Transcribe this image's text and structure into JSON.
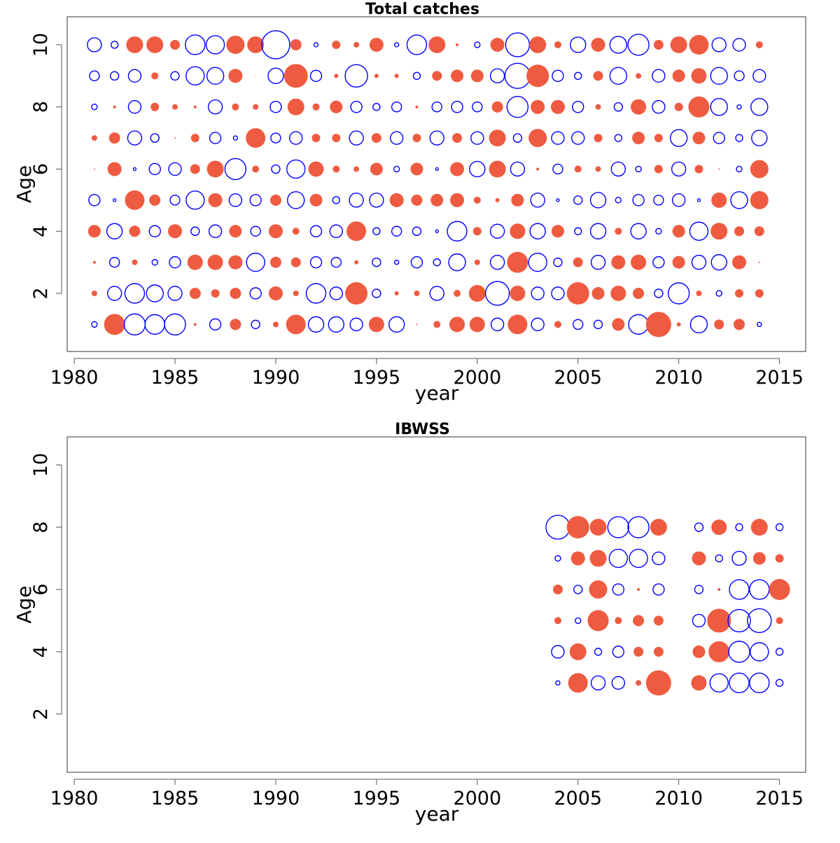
{
  "chart_data": [
    {
      "type": "bubble",
      "title": "Total catches",
      "xlabel": "year",
      "ylabel": "Age",
      "positive_color": "#ef5b40",
      "negative_color": "#0000ff",
      "xlim": [
        1979.65,
        2016.3
      ],
      "ylim": [
        0.13,
        10.9
      ],
      "xticks": [
        1980,
        1985,
        1990,
        1995,
        2000,
        2005,
        2010,
        2015
      ],
      "yticks": [
        2,
        4,
        6,
        8,
        10
      ],
      "x": [
        1981,
        1982,
        1983,
        1984,
        1985,
        1986,
        1987,
        1988,
        1989,
        1990,
        1991,
        1992,
        1993,
        1994,
        1995,
        1996,
        1997,
        1998,
        1999,
        2000,
        2001,
        2002,
        2003,
        2004,
        2005,
        2006,
        2007,
        2008,
        2009,
        2010,
        2011,
        2012,
        2013,
        2014
      ],
      "y": [
        10,
        9,
        8,
        7,
        6,
        5,
        4,
        3,
        2,
        1
      ],
      "values": [
        [
          -1.0,
          -0.5,
          1.2,
          1.2,
          0.7,
          -1.4,
          -1.3,
          1.3,
          1.2,
          -2.0,
          0.8,
          -0.3,
          0.6,
          0.4,
          1.0,
          -0.3,
          -1.4,
          1.2,
          0.2,
          -0.4,
          1.0,
          -1.7,
          1.2,
          0.5,
          -1.1,
          1.0,
          -1.2,
          -1.5,
          0.7,
          1.2,
          1.4,
          -1.0,
          -0.9,
          0.5
        ],
        [
          -0.7,
          -0.6,
          -0.9,
          0.5,
          -0.6,
          -1.3,
          -1.2,
          1.0,
          0.05,
          -1.1,
          1.7,
          -0.8,
          0.3,
          -1.6,
          0.3,
          0.3,
          -0.5,
          0.7,
          0.9,
          0.9,
          -1.0,
          -1.8,
          1.6,
          -0.8,
          -0.5,
          0.7,
          -1.2,
          0.4,
          -0.9,
          0.9,
          1.1,
          -1.2,
          -0.7,
          -0.9
        ],
        [
          -0.4,
          0.2,
          -0.9,
          0.6,
          0.4,
          0.2,
          -1.0,
          0.5,
          0.4,
          -0.8,
          1.2,
          0.5,
          0.9,
          -0.8,
          -0.5,
          -0.7,
          0.2,
          -0.7,
          -0.8,
          -0.7,
          0.8,
          -1.5,
          1.0,
          1.0,
          -0.8,
          0.4,
          -0.6,
          1.1,
          -0.9,
          0.6,
          1.5,
          -1.2,
          -0.3,
          -1.2
        ],
        [
          0.4,
          0.8,
          -1.0,
          -0.6,
          0.1,
          0.6,
          -0.8,
          -0.3,
          1.4,
          -0.7,
          -0.9,
          0.6,
          0.6,
          -1.0,
          0.7,
          -0.9,
          0.6,
          -1.0,
          0.7,
          -0.9,
          1.2,
          -0.6,
          1.3,
          -0.9,
          -0.9,
          0.6,
          -0.5,
          0.9,
          0.6,
          -1.2,
          0.9,
          -0.8,
          -0.5,
          -1.1
        ],
        [
          0.1,
          1.0,
          -0.2,
          -0.8,
          -0.9,
          0.7,
          1.2,
          -1.5,
          0.5,
          -0.6,
          -1.3,
          1.1,
          0.5,
          0.4,
          0.9,
          -0.4,
          0.9,
          -0.2,
          1.0,
          -1.1,
          1.2,
          -1.0,
          0.2,
          -0.7,
          0.5,
          0.4,
          -1.0,
          -0.4,
          0.6,
          -1.0,
          0.6,
          0.1,
          -0.4,
          1.3
        ],
        [
          -0.8,
          -0.2,
          1.4,
          0.8,
          -0.7,
          -1.3,
          1.0,
          -0.9,
          -0.8,
          0.8,
          -1.2,
          0.9,
          -0.5,
          -1.0,
          -1.0,
          1.0,
          0.8,
          0.9,
          1.0,
          0.5,
          0.3,
          0.9,
          -1.0,
          -0.2,
          -0.6,
          -1.1,
          -0.4,
          -0.8,
          -0.7,
          -0.9,
          -0.2,
          1.1,
          -1.2,
          1.3
        ],
        [
          0.9,
          -1.1,
          0.8,
          -0.8,
          1.0,
          -0.6,
          -0.9,
          0.9,
          -0.7,
          1.0,
          0.5,
          -0.8,
          -0.9,
          1.4,
          -0.5,
          -0.7,
          -0.6,
          -0.2,
          -1.4,
          0.6,
          -1.0,
          1.1,
          -1.1,
          0.9,
          -0.5,
          -1.1,
          0.5,
          -1.1,
          -0.4,
          0.9,
          -1.3,
          1.2,
          0.7,
          0.7
        ],
        [
          0.2,
          -0.7,
          0.4,
          -0.4,
          -0.8,
          1.1,
          1.1,
          1.0,
          -1.3,
          0.8,
          0.7,
          -0.8,
          -0.7,
          0.3,
          -0.6,
          -0.3,
          -0.8,
          -0.5,
          -1.2,
          0.4,
          -1.0,
          1.5,
          -1.3,
          -0.6,
          0.7,
          -1.0,
          1.0,
          1.1,
          -0.8,
          0.9,
          -1.0,
          -1.1,
          1.0,
          0.1
        ],
        [
          0.4,
          -1.0,
          -1.4,
          -1.2,
          -1.0,
          0.8,
          0.6,
          0.8,
          -0.8,
          1.0,
          0.4,
          -1.4,
          -0.9,
          1.6,
          -0.6,
          0.3,
          0.4,
          -1.0,
          0.5,
          1.2,
          -1.7,
          1.1,
          -0.9,
          -0.9,
          1.6,
          0.9,
          1.1,
          0.8,
          -0.6,
          -1.5,
          0.4,
          -0.4,
          0.6,
          0.6
        ],
        [
          -0.4,
          1.5,
          -1.5,
          -1.4,
          -1.5,
          0.2,
          -0.8,
          0.8,
          -0.6,
          0.4,
          1.4,
          -1.1,
          -1.1,
          -0.9,
          1.1,
          -1.1,
          0.1,
          0.5,
          1.1,
          1.1,
          -0.9,
          1.4,
          -0.9,
          0.5,
          -0.7,
          -0.6,
          0.9,
          -1.4,
          1.8,
          0.3,
          -1.2,
          0.7,
          0.8,
          -0.3
        ]
      ]
    },
    {
      "type": "bubble",
      "title": "IBWSS",
      "xlabel": "year",
      "ylabel": "Age",
      "positive_color": "#ef5b40",
      "negative_color": "#0000ff",
      "xlim": [
        1979.65,
        2016.3
      ],
      "ylim": [
        0.13,
        10.9
      ],
      "xticks": [
        1980,
        1985,
        1990,
        1995,
        2000,
        2005,
        2010,
        2015
      ],
      "yticks": [
        2,
        4,
        6,
        8,
        10
      ],
      "x": [
        2004,
        2005,
        2006,
        2007,
        2008,
        2009,
        2010,
        2011,
        2012,
        2013,
        2014,
        2015
      ],
      "y": [
        8,
        7,
        6,
        5,
        4,
        3
      ],
      "values": [
        [
          -1.7,
          1.6,
          1.2,
          -1.5,
          -1.5,
          1.2,
          null,
          -0.6,
          1.1,
          -0.5,
          1.2,
          -0.5
        ],
        [
          -0.4,
          1.0,
          1.2,
          -1.3,
          -1.3,
          -0.9,
          null,
          1.0,
          -0.5,
          -1.0,
          0.9,
          0.6
        ],
        [
          0.7,
          -0.6,
          1.3,
          -0.8,
          0.2,
          -0.8,
          null,
          -0.6,
          0.2,
          -1.4,
          -1.4,
          1.5
        ],
        [
          0.5,
          -0.4,
          1.5,
          0.5,
          0.8,
          0.7,
          null,
          -0.9,
          1.7,
          -1.6,
          -1.7,
          0.5
        ],
        [
          -0.9,
          1.2,
          -0.5,
          -0.8,
          0.7,
          0.7,
          null,
          0.9,
          1.5,
          -1.5,
          -1.3,
          -0.5
        ],
        [
          -0.3,
          1.4,
          -1.0,
          -0.9,
          0.4,
          1.8,
          null,
          1.1,
          -1.3,
          -1.4,
          -1.4,
          -0.5
        ]
      ]
    }
  ]
}
